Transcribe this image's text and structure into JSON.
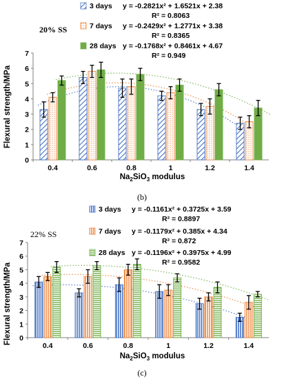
{
  "chart_data": [
    {
      "type": "bar",
      "panel_label": "(b)",
      "annotation": "20% SS",
      "xlabel": "Na₂SiO₃ modulus",
      "ylabel": "Flexural strength/MPa",
      "ylim": [
        0,
        7
      ],
      "yticks": [
        "0",
        "1",
        "2",
        "3",
        "4",
        "5",
        "6",
        "7"
      ],
      "categories": [
        "0.4",
        "0.6",
        "0.8",
        "1",
        "1.2",
        "1.4"
      ],
      "grid": false,
      "legend_position": "top",
      "series": [
        {
          "name": "3 days",
          "color": "#4472C4",
          "pattern": "diagonal",
          "values": [
            3.3,
            5.4,
            4.7,
            4.2,
            3.3,
            2.4
          ],
          "errors": [
            0.5,
            0.4,
            0.6,
            0.3,
            0.4,
            0.4
          ],
          "equation": "y = -0.2821x² + 1.6521x + 2.38",
          "r2": "R² = 0.8063"
        },
        {
          "name": "7 days",
          "color": "#ED7D31",
          "pattern": "dots",
          "values": [
            4.1,
            5.8,
            4.8,
            4.4,
            3.5,
            2.5
          ],
          "errors": [
            0.3,
            0.4,
            0.5,
            0.4,
            0.5,
            0.4
          ],
          "equation": "y = -0.2429x² + 1.2771x + 3.38",
          "r2": "R² = 0.8365"
        },
        {
          "name": "28 days",
          "color": "#70AD47",
          "pattern": "solid",
          "values": [
            5.2,
            5.9,
            5.6,
            4.9,
            4.6,
            3.4
          ],
          "errors": [
            0.3,
            0.5,
            0.4,
            0.4,
            0.4,
            0.5
          ],
          "equation": "y = -0.1768x² + 0.8461x + 4.67",
          "r2": "R² = 0.949"
        }
      ]
    },
    {
      "type": "bar",
      "panel_label": "(c)",
      "annotation": "22% SS",
      "xlabel": "Na₂SiO₃ modulus",
      "ylabel": "Flexural strength/MPa",
      "ylim": [
        0,
        7
      ],
      "yticks": [
        "0",
        "1",
        "2",
        "3",
        "4",
        "5",
        "6",
        "7"
      ],
      "categories": [
        "0.4",
        "0.6",
        "0.8",
        "1",
        "1.2",
        "1.4"
      ],
      "grid": false,
      "legend_position": "top",
      "series": [
        {
          "name": "3 days",
          "color": "#4472C4",
          "pattern": "vertical",
          "values": [
            4.1,
            3.3,
            3.9,
            3.4,
            2.5,
            1.5
          ],
          "errors": [
            0.4,
            0.3,
            0.5,
            0.5,
            0.4,
            0.3
          ],
          "equation": "y = -0.1161x² + 0.3725x + 3.59",
          "r2": "R² = 0.8897"
        },
        {
          "name": "7 days",
          "color": "#ED7D31",
          "pattern": "vertical",
          "values": [
            4.5,
            4.5,
            5.0,
            3.5,
            3.0,
            2.6
          ],
          "errors": [
            0.3,
            0.5,
            0.4,
            0.4,
            0.3,
            0.5
          ],
          "equation": "y = -0.1179x² + 0.385x + 4.34",
          "r2": "R² = 0.872"
        },
        {
          "name": "28 days",
          "color": "#70AD47",
          "pattern": "horizontal",
          "values": [
            5.2,
            5.3,
            5.4,
            4.4,
            3.7,
            3.2
          ],
          "errors": [
            0.4,
            0.3,
            0.4,
            0.3,
            0.4,
            0.2
          ],
          "equation": "y = -0.1196x² + 0.3975x + 4.99",
          "r2": "R² = 0.9582"
        }
      ]
    }
  ]
}
